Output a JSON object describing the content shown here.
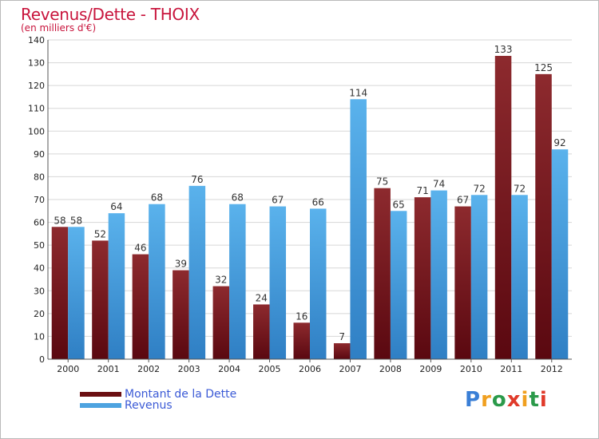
{
  "chart_data": {
    "type": "bar",
    "title": "Revenus/Dette - THOIX",
    "subtitle": "(en milliers d'€)",
    "categories": [
      "2000",
      "2001",
      "2002",
      "2003",
      "2004",
      "2005",
      "2006",
      "2007",
      "2008",
      "2009",
      "2010",
      "2011",
      "2012"
    ],
    "series": [
      {
        "name": "Montant de la Dette",
        "color": "#8b1a1a",
        "values": [
          58,
          52,
          46,
          39,
          32,
          24,
          16,
          7,
          75,
          71,
          67,
          133,
          125
        ]
      },
      {
        "name": "Revenus",
        "color": "#4da3e0",
        "values": [
          58,
          64,
          68,
          76,
          68,
          67,
          66,
          114,
          65,
          74,
          72,
          72,
          92
        ]
      }
    ],
    "ylim": [
      0,
      140
    ],
    "yticks": [
      0,
      10,
      20,
      30,
      40,
      50,
      60,
      70,
      80,
      90,
      100,
      110,
      120,
      130,
      140
    ],
    "grid": true,
    "legend": "bottom-left"
  },
  "logo": {
    "letters": [
      "P",
      "r",
      "o",
      "x",
      "i",
      "t",
      "i"
    ],
    "colors": [
      "#3a7fd6",
      "#f0a020",
      "#2b9a4a",
      "#e03a2a",
      "#f0a020",
      "#2b9a4a",
      "#e03a2a"
    ]
  }
}
